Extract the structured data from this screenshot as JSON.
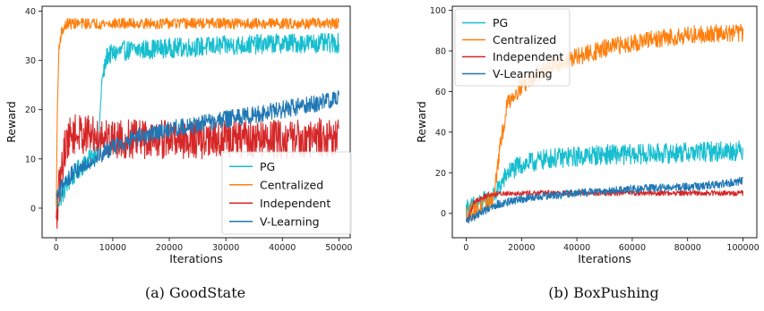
{
  "chart_data": [
    {
      "type": "line",
      "subplot_label": "(a)",
      "caption": "GoodState",
      "xlabel": "Iterations",
      "ylabel": "Reward",
      "xlim": [
        -2500,
        52000
      ],
      "ylim": [
        -6,
        41
      ],
      "xticks": [
        0,
        10000,
        20000,
        30000,
        40000,
        50000
      ],
      "yticks": [
        0,
        10,
        20,
        30,
        40
      ],
      "legend": "lower-right",
      "grid": false,
      "series": [
        {
          "name": "PG",
          "color": "#17becf",
          "noise": 2.0,
          "x": [
            0,
            1000,
            2000,
            4000,
            6000,
            7500,
            8000,
            9000,
            12000,
            20000,
            30000,
            40000,
            50000
          ],
          "y": [
            1,
            2.5,
            5,
            8,
            10,
            12,
            25,
            31,
            32,
            32.5,
            33,
            33.5,
            33.5
          ]
        },
        {
          "name": "Centralized",
          "color": "#ff7f0e",
          "noise": 1.1,
          "x": [
            0,
            200,
            500,
            1000,
            2000,
            5000,
            20000,
            50000
          ],
          "y": [
            0,
            20,
            33,
            36,
            37.5,
            37.5,
            37.5,
            37.5
          ]
        },
        {
          "name": "Independent",
          "color": "#d62728",
          "noise": 4.0,
          "x": [
            0,
            500,
            1000,
            1500,
            2000,
            3000,
            5000,
            8000,
            12000,
            20000,
            30000,
            40000,
            50000
          ],
          "y": [
            -4,
            4,
            8,
            12,
            14,
            15,
            15,
            14.5,
            14,
            14,
            14,
            14,
            14.5
          ]
        },
        {
          "name": "V-Learning",
          "color": "#1f77b4",
          "noise": 1.8,
          "x": [
            0,
            2000,
            5000,
            8000,
            10000,
            15000,
            20000,
            25000,
            30000,
            35000,
            40000,
            45000,
            50000
          ],
          "y": [
            2,
            6,
            9,
            11,
            12.5,
            14.5,
            16,
            17,
            18,
            19,
            20,
            21,
            22.5
          ]
        }
      ]
    },
    {
      "type": "line",
      "subplot_label": "(b)",
      "caption": "BoxPushing",
      "xlabel": "Iterations",
      "ylabel": "Reward",
      "xlim": [
        -5000,
        105000
      ],
      "ylim": [
        -12,
        102
      ],
      "xticks": [
        0,
        20000,
        40000,
        60000,
        80000,
        100000
      ],
      "yticks": [
        0,
        20,
        40,
        60,
        80,
        100
      ],
      "legend": "upper-left",
      "grid": false,
      "series": [
        {
          "name": "PG",
          "color": "#17becf",
          "noise": 5.0,
          "x": [
            0,
            5000,
            10000,
            15000,
            20000,
            30000,
            40000,
            50000,
            60000,
            70000,
            80000,
            90000,
            100000
          ],
          "y": [
            2,
            5,
            8,
            20,
            24,
            27,
            28,
            29,
            29,
            29.5,
            30,
            30.5,
            31
          ]
        },
        {
          "name": "Centralized",
          "color": "#ff7f0e",
          "noise": 4.5,
          "x": [
            0,
            5000,
            10000,
            12000,
            15000,
            20000,
            25000,
            30000,
            40000,
            50000,
            60000,
            70000,
            80000,
            90000,
            100000
          ],
          "y": [
            0,
            3,
            8,
            30,
            55,
            63,
            68,
            72,
            77,
            81,
            84,
            86,
            88,
            88.5,
            89
          ]
        },
        {
          "name": "Independent",
          "color": "#d62728",
          "noise": 1.3,
          "x": [
            0,
            3000,
            8000,
            15000,
            30000,
            50000,
            70000,
            100000
          ],
          "y": [
            -5,
            6,
            9,
            10,
            10,
            10,
            10,
            10
          ]
        },
        {
          "name": "V-Learning",
          "color": "#1f77b4",
          "noise": 2.0,
          "x": [
            0,
            10000,
            20000,
            30000,
            40000,
            50000,
            60000,
            70000,
            80000,
            90000,
            100000
          ],
          "y": [
            -4,
            4,
            7,
            8.5,
            10,
            11,
            12,
            12.5,
            13,
            14,
            16
          ]
        }
      ]
    }
  ]
}
